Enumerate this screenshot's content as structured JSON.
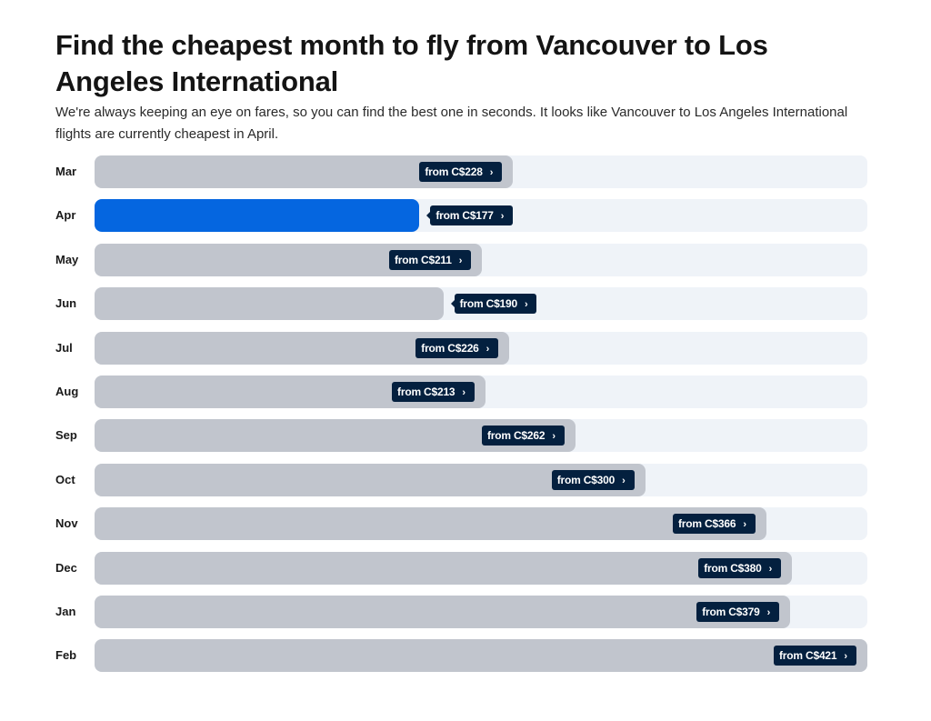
{
  "header": {
    "title": "Find the cheapest month to fly from Vancouver to Los Angeles International",
    "subtitle": "We're always keeping an eye on fares, so you can find the best one in seconds. It looks like Vancouver to Los Angeles International flights are currently cheapest in April."
  },
  "colors": {
    "track": "#eff3f8",
    "bar": "#c1c5cd",
    "cheapest_bar": "#0566e0",
    "tag_bg": "#04203f",
    "tag_text": "#ffffff"
  },
  "chart_data": {
    "type": "bar",
    "orientation": "horizontal",
    "title": "Find the cheapest month to fly from Vancouver to Los Angeles International",
    "xlabel": "",
    "ylabel": "",
    "currency": "C$",
    "label_prefix": "from",
    "categories": [
      "Mar",
      "Apr",
      "May",
      "Jun",
      "Jul",
      "Aug",
      "Sep",
      "Oct",
      "Nov",
      "Dec",
      "Jan",
      "Feb"
    ],
    "values": [
      228,
      177,
      211,
      190,
      226,
      213,
      262,
      300,
      366,
      380,
      379,
      421
    ],
    "labels": [
      "from C$228",
      "from C$177",
      "from C$211",
      "from C$190",
      "from C$226",
      "from C$213",
      "from C$262",
      "from C$300",
      "from C$366",
      "from C$380",
      "from C$379",
      "from C$421"
    ],
    "cheapest": "Apr",
    "xlim": [
      0,
      421
    ],
    "grid": false,
    "legend": "none"
  }
}
